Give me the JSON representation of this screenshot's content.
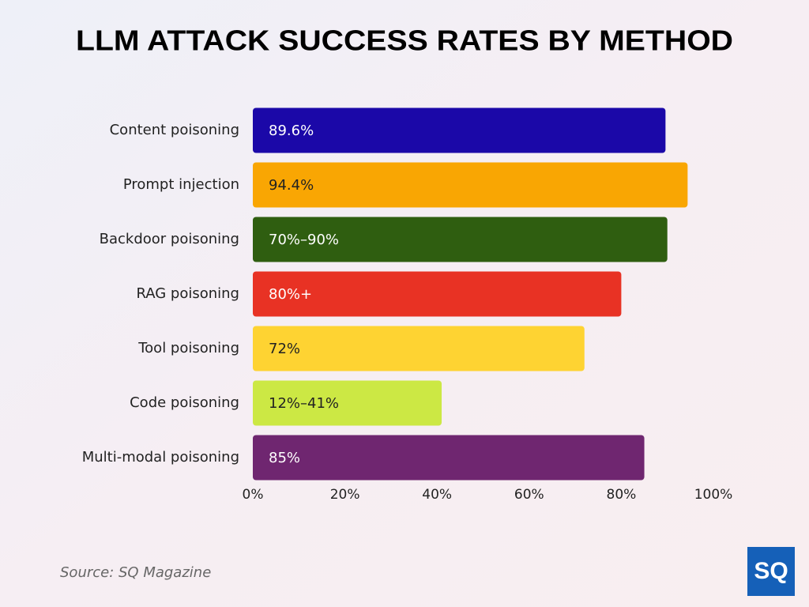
{
  "chart_data": {
    "type": "bar",
    "orientation": "horizontal",
    "title": "LLM ATTACK SUCCESS RATES BY METHOD",
    "categories": [
      "Content poisoning",
      "Prompt injection",
      "Backdoor poisoning",
      "RAG poisoning",
      "Tool poisoning",
      "Code poisoning",
      "Multi-modal poisoning"
    ],
    "values": [
      89.6,
      94.4,
      90,
      80,
      72,
      41,
      85
    ],
    "value_labels": [
      "89.6%",
      "94.4%",
      "70%–90%",
      "80%+",
      "72%",
      "12%–41%",
      "85%"
    ],
    "colors": [
      "#1b08a8",
      "#f9a603",
      "#2f5e10",
      "#e83224",
      "#fed332",
      "#cce844",
      "#6f2670"
    ],
    "xlim": [
      0,
      100
    ],
    "xticks": [
      {
        "value": 0,
        "label": "0%"
      },
      {
        "value": 20,
        "label": "20%"
      },
      {
        "value": 40,
        "label": "40%"
      },
      {
        "value": 60,
        "label": "60%"
      },
      {
        "value": 80,
        "label": "80%"
      },
      {
        "value": 100,
        "label": "100%"
      }
    ],
    "grid": false,
    "source": "Source: SQ Magazine",
    "logo": "SQ"
  }
}
